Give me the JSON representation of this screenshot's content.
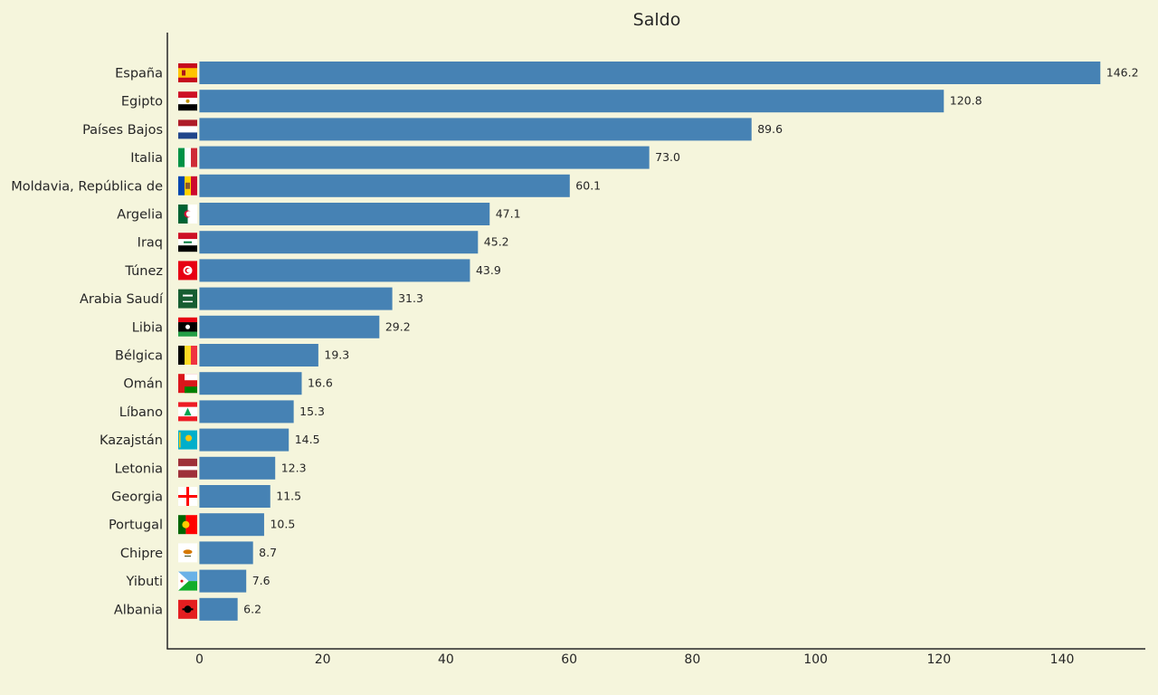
{
  "chart_data": {
    "type": "bar",
    "orientation": "horizontal",
    "title": "Saldo",
    "xlabel": "",
    "ylabel": "",
    "xlim": [
      -5.2,
      153.5
    ],
    "x_ticks": [
      "0",
      "20",
      "40",
      "60",
      "80",
      "100",
      "120",
      "140"
    ],
    "grid": false,
    "legend": "none",
    "bar_color": "#4682b4",
    "background": "#f5f5dc",
    "categories": [
      "España",
      "Egipto",
      "Países Bajos",
      "Italia",
      "Moldavia, República de",
      "Argelia",
      "Iraq",
      "Túnez",
      "Arabia Saudí",
      "Libia",
      "Bélgica",
      "Omán",
      "Líbano",
      "Kazajstán",
      "Letonia",
      "Georgia",
      "Portugal",
      "Chipre",
      "Yibuti",
      "Albania"
    ],
    "values": [
      146.2,
      120.8,
      89.6,
      73.0,
      60.1,
      47.1,
      45.2,
      43.9,
      31.3,
      29.2,
      19.3,
      16.6,
      15.3,
      14.5,
      12.3,
      11.5,
      10.5,
      8.7,
      7.6,
      6.2
    ],
    "value_labels": [
      "146.2",
      "120.8",
      "89.6",
      "73.0",
      "60.1",
      "47.1",
      "45.2",
      "43.9",
      "31.3",
      "29.2",
      "19.3",
      "16.6",
      "15.3",
      "14.5",
      "12.3",
      "11.5",
      "10.5",
      "8.7",
      "7.6",
      "6.2"
    ],
    "flag_icons": [
      "flag-spain-icon",
      "flag-egypt-icon",
      "flag-netherlands-icon",
      "flag-italy-icon",
      "flag-moldova-icon",
      "flag-algeria-icon",
      "flag-iraq-icon",
      "flag-tunisia-icon",
      "flag-saudi-arabia-icon",
      "flag-libya-icon",
      "flag-belgium-icon",
      "flag-oman-icon",
      "flag-lebanon-icon",
      "flag-kazakhstan-icon",
      "flag-latvia-icon",
      "flag-georgia-icon",
      "flag-portugal-icon",
      "flag-cyprus-icon",
      "flag-djibouti-icon",
      "flag-albania-icon"
    ]
  }
}
